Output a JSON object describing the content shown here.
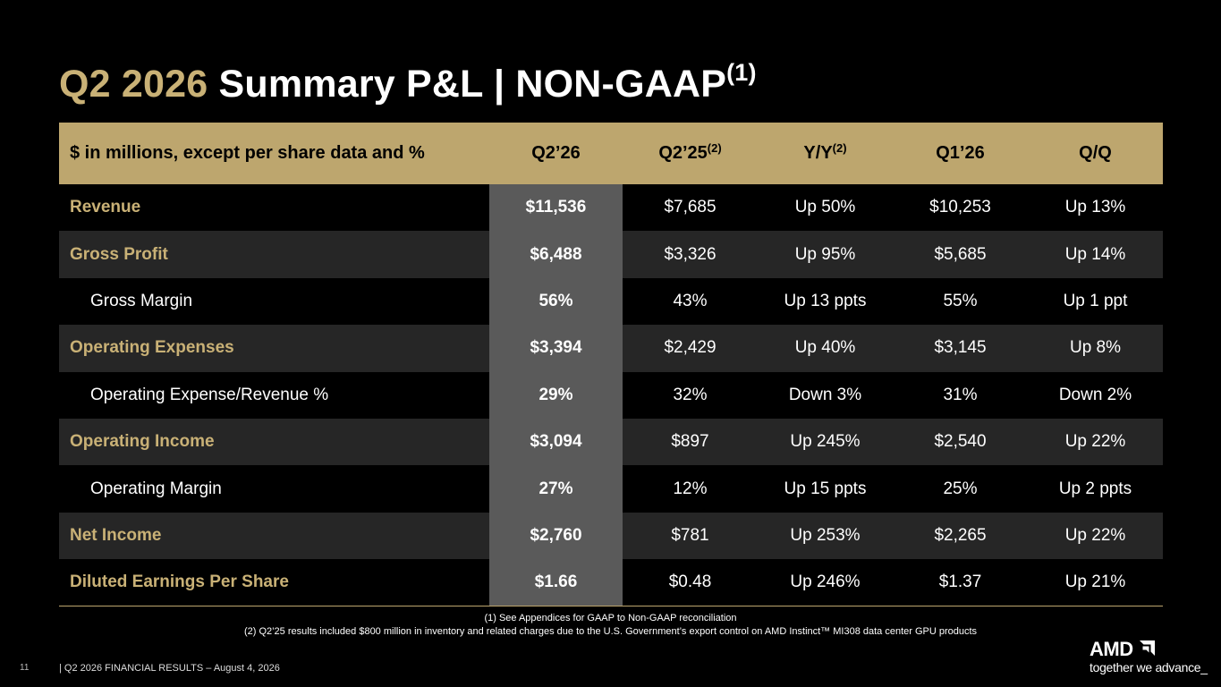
{
  "title": {
    "quarter": "Q2 2026",
    "main": " Summary P&L  |  NON-GAAP",
    "footnote_ref": "(1)"
  },
  "table": {
    "headers": {
      "label": "$ in millions, except per share data and %",
      "cur": "Q2’26",
      "prior": "Q2’25",
      "prior_note": "(2)",
      "yy": "Y/Y",
      "yy_note": "(2)",
      "q1": "Q1’26",
      "qq": "Q/Q"
    },
    "rows": [
      {
        "label": "Revenue",
        "cur": "$11,536",
        "prior": "$7,685",
        "yy": "Up 50%",
        "q1": "$10,253",
        "qq": "Up 13%"
      },
      {
        "label": "Gross Profit",
        "cur": "$6,488",
        "prior": "$3,326",
        "yy": "Up 95%",
        "q1": "$5,685",
        "qq": "Up 14%"
      },
      {
        "label": "Gross Margin",
        "cur": "56%",
        "prior": "43%",
        "yy": "Up 13 ppts",
        "q1": "55%",
        "qq": "Up 1 ppt"
      },
      {
        "label": "Operating Expenses",
        "cur": "$3,394",
        "prior": "$2,429",
        "yy": "Up 40%",
        "q1": "$3,145",
        "qq": "Up 8%"
      },
      {
        "label": "Operating Expense/Revenue %",
        "cur": "29%",
        "prior": "32%",
        "yy": "Down 3%",
        "q1": "31%",
        "qq": "Down 2%"
      },
      {
        "label": "Operating Income",
        "cur": "$3,094",
        "prior": "$897",
        "yy": "Up 245%",
        "q1": "$2,540",
        "qq": "Up 22%"
      },
      {
        "label": "Operating Margin",
        "cur": "27%",
        "prior": "12%",
        "yy": "Up 15 ppts",
        "q1": "25%",
        "qq": "Up 2 ppts"
      },
      {
        "label": "Net Income",
        "cur": "$2,760",
        "prior": "$781",
        "yy": "Up 253%",
        "q1": "$2,265",
        "qq": "Up 22%"
      },
      {
        "label": "Diluted Earnings Per Share",
        "cur": "$1.66",
        "prior": "$0.48",
        "yy": "Up 246%",
        "q1": "$1.37",
        "qq": "Up 21%"
      }
    ]
  },
  "footnotes": {
    "one": "(1) See Appendices for GAAP to Non-GAAP reconciliation",
    "two": "(2) Q2’25 results included $800 million in inventory and related charges due to the U.S. Government’s export control on AMD Instinct™ MI308 data center GPU products"
  },
  "footer": {
    "page": "11",
    "text": "|   Q2 2026 FINANCIAL RESULTS – August 4, 2026"
  },
  "brand": {
    "logo_text": "AMD",
    "logo_icon": "amd-arrow-icon",
    "tagline": "together we advance_"
  },
  "colors": {
    "accent_gold": "#C9B176",
    "header_gold": "#BDA66E",
    "highlight_column": "#5A5A5A",
    "row_alt": "#262626"
  }
}
